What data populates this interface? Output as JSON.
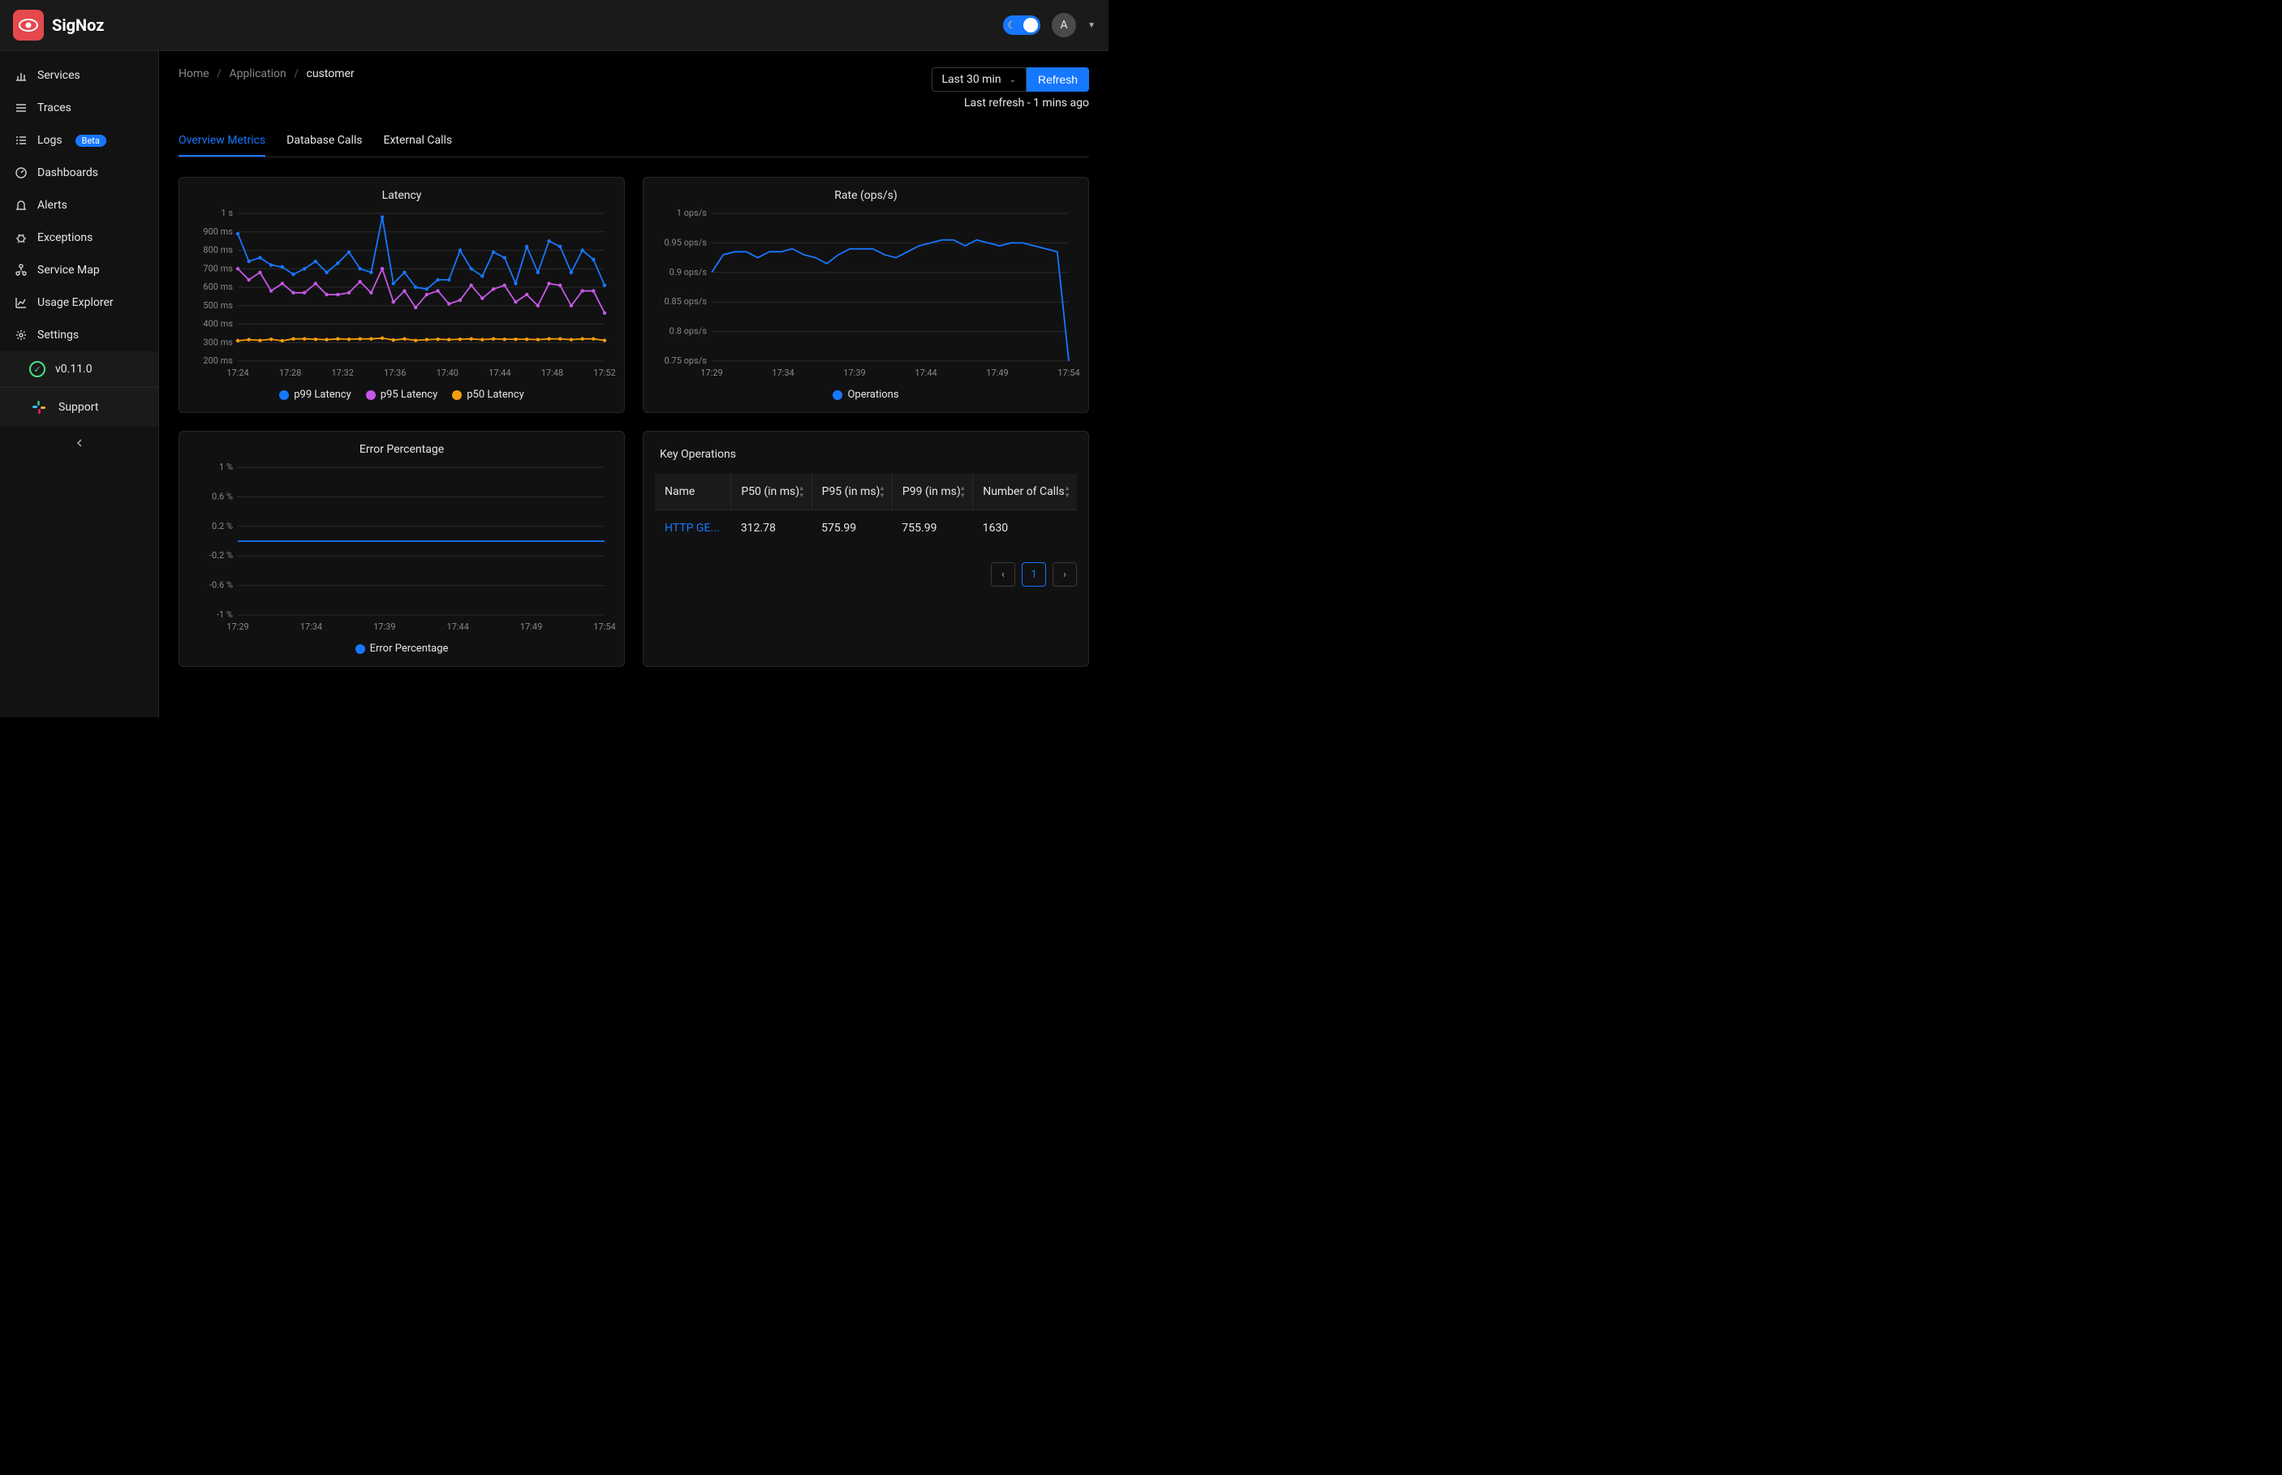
{
  "brand": {
    "name": "SigNoz"
  },
  "topbar": {
    "avatar_initial": "A"
  },
  "sidebar": {
    "items": [
      {
        "label": "Services"
      },
      {
        "label": "Traces"
      },
      {
        "label": "Logs",
        "badge": "Beta"
      },
      {
        "label": "Dashboards"
      },
      {
        "label": "Alerts"
      },
      {
        "label": "Exceptions"
      },
      {
        "label": "Service Map"
      },
      {
        "label": "Usage Explorer"
      },
      {
        "label": "Settings"
      }
    ],
    "version": "v0.11.0",
    "support": "Support"
  },
  "breadcrumb": {
    "home": "Home",
    "app": "Application",
    "current": "customer"
  },
  "time": {
    "range_label": "Last 30 min",
    "refresh_label": "Refresh",
    "last_refresh": "Last refresh - 1 mins ago"
  },
  "tabs": [
    {
      "label": "Overview Metrics"
    },
    {
      "label": "Database Calls"
    },
    {
      "label": "External Calls"
    }
  ],
  "latency_chart": {
    "title": "Latency",
    "legend": [
      {
        "label": "p99 Latency",
        "color": "#1677ff"
      },
      {
        "label": "p95 Latency",
        "color": "#c658e6"
      },
      {
        "label": "p50 Latency",
        "color": "#f59e0b"
      }
    ],
    "x_labels": [
      "17:24",
      "17:28",
      "17:32",
      "17:36",
      "17:40",
      "17:44",
      "17:48",
      "17:52"
    ],
    "y_labels": [
      "1 s",
      "900 ms",
      "800 ms",
      "700 ms",
      "600 ms",
      "500 ms",
      "400 ms",
      "300 ms",
      "200 ms"
    ],
    "y_min": 200,
    "y_max": 1000,
    "p99": [
      890,
      740,
      760,
      720,
      710,
      670,
      700,
      740,
      680,
      730,
      790,
      700,
      680,
      980,
      620,
      680,
      600,
      590,
      640,
      640,
      800,
      700,
      660,
      790,
      760,
      620,
      820,
      680,
      850,
      820,
      680,
      800,
      750,
      610
    ],
    "p95": [
      700,
      640,
      680,
      580,
      620,
      570,
      570,
      620,
      560,
      560,
      570,
      630,
      570,
      700,
      520,
      580,
      490,
      560,
      580,
      510,
      530,
      610,
      540,
      590,
      610,
      520,
      560,
      500,
      620,
      610,
      500,
      580,
      580,
      460
    ],
    "p50": [
      310,
      316,
      312,
      318,
      310,
      320,
      320,
      318,
      316,
      320,
      318,
      320,
      320,
      324,
      314,
      320,
      312,
      316,
      318,
      316,
      318,
      320,
      316,
      320,
      318,
      318,
      318,
      316,
      320,
      320,
      316,
      320,
      320,
      312
    ]
  },
  "rate_chart": {
    "title": "Rate (ops/s)",
    "legend": [
      {
        "label": "Operations",
        "color": "#1677ff"
      }
    ],
    "x_labels": [
      "17:29",
      "17:34",
      "17:39",
      "17:44",
      "17:49",
      "17:54"
    ],
    "y_labels": [
      "1 ops/s",
      "0.95 ops/s",
      "0.9 ops/s",
      "0.85 ops/s",
      "0.8 ops/s",
      "0.75 ops/s"
    ],
    "y_min": 0.75,
    "y_max": 1.0,
    "series": [
      0.9,
      0.93,
      0.935,
      0.935,
      0.925,
      0.935,
      0.935,
      0.94,
      0.93,
      0.925,
      0.915,
      0.93,
      0.94,
      0.94,
      0.94,
      0.93,
      0.925,
      0.935,
      0.945,
      0.95,
      0.955,
      0.955,
      0.945,
      0.955,
      0.95,
      0.945,
      0.95,
      0.95,
      0.945,
      0.94,
      0.935,
      0.75
    ]
  },
  "error_chart": {
    "title": "Error Percentage",
    "legend": [
      {
        "label": "Error Percentage",
        "color": "#1677ff"
      }
    ],
    "x_labels": [
      "17:29",
      "17:34",
      "17:39",
      "17:44",
      "17:49",
      "17:54"
    ],
    "y_labels": [
      "1 %",
      "0.6 %",
      "0.2 %",
      "-0.2 %",
      "-0.6 %",
      "-1 %"
    ],
    "y_min": -1,
    "y_max": 1,
    "series": [
      0,
      0,
      0,
      0,
      0,
      0,
      0,
      0,
      0,
      0,
      0,
      0,
      0,
      0,
      0,
      0,
      0,
      0,
      0,
      0,
      0,
      0,
      0,
      0,
      0,
      0,
      0,
      0,
      0,
      0,
      0,
      0
    ]
  },
  "key_ops": {
    "title": "Key Operations",
    "columns": [
      "Name",
      "P50 (in ms)",
      "P95 (in ms)",
      "P99 (in ms)",
      "Number of Calls"
    ],
    "rows": [
      {
        "name": "HTTP GE...",
        "p50": "312.78",
        "p95": "575.99",
        "p99": "755.99",
        "calls": "1630"
      }
    ],
    "page": "1"
  }
}
